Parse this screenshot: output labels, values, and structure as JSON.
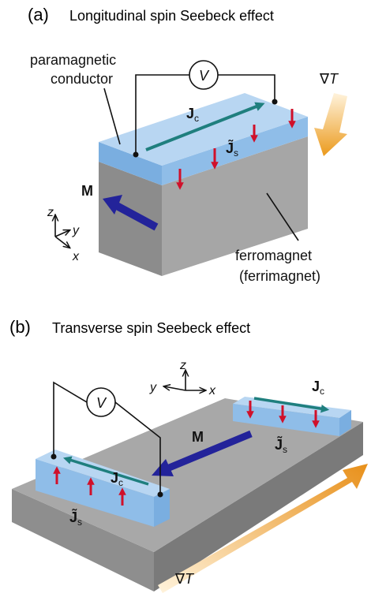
{
  "panel_a": {
    "label": "(a)",
    "title": "Longitudinal spin Seebeck effect",
    "conductor_label": [
      "paramagnetic",
      "conductor"
    ],
    "voltmeter": "V",
    "charge_current": {
      "symbol": "J",
      "subscript": "c"
    },
    "spin_current": {
      "symbol": "J̃",
      "subscript": "s"
    },
    "magnetization": "M",
    "gradient": {
      "operator": "∇",
      "variable": "T"
    },
    "axes": {
      "z": "z",
      "y": "y",
      "x": "x"
    },
    "ferromagnet_label": [
      "ferromagnet",
      "(ferrimagnet)"
    ]
  },
  "panel_b": {
    "label": "(b)",
    "title": "Transverse spin Seebeck effect",
    "axes": {
      "z": "z",
      "y": "y",
      "x": "x"
    },
    "voltmeter": "V",
    "left_strip": {
      "charge_current": {
        "symbol": "J",
        "subscript": "c"
      },
      "spin_current": {
        "symbol": "J̃",
        "subscript": "s"
      }
    },
    "right_strip": {
      "charge_current": {
        "symbol": "J",
        "subscript": "c"
      },
      "spin_current": {
        "symbol": "J̃",
        "subscript": "s"
      }
    },
    "magnetization": "M",
    "gradient": {
      "operator": "∇",
      "variable": "T"
    }
  }
}
